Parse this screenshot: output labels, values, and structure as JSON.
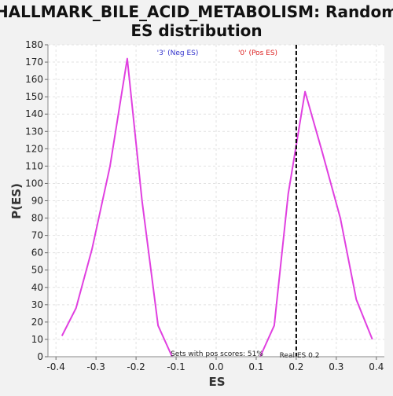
{
  "chart_data": {
    "type": "line",
    "title_line1": "HALLMARK_BILE_ACID_METABOLISM: Random",
    "title_line2": "ES distribution",
    "xlabel": "ES",
    "ylabel": "P(ES)",
    "xlim": [
      -0.42,
      0.42
    ],
    "ylim": [
      0,
      180
    ],
    "x_ticks": [
      -0.4,
      -0.3,
      -0.2,
      -0.1,
      0.0,
      0.1,
      0.2,
      0.3,
      0.4
    ],
    "x_tick_labels": [
      "-0.4",
      "-0.3",
      "-0.2",
      "-0.1",
      "0.0",
      "0.1",
      "0.2",
      "0.3",
      "0.4"
    ],
    "y_ticks": [
      0,
      10,
      20,
      30,
      40,
      50,
      60,
      70,
      80,
      90,
      100,
      110,
      120,
      130,
      140,
      150,
      160,
      170,
      180
    ],
    "y_tick_labels": [
      "0",
      "10",
      "20",
      "30",
      "40",
      "50",
      "60",
      "70",
      "80",
      "90",
      "100",
      "110",
      "120",
      "130",
      "140",
      "150",
      "160",
      "170",
      "180"
    ],
    "grid": true,
    "legend": [
      {
        "label": "'3' (Neg ES)",
        "color": "#3333cc"
      },
      {
        "label": "'0' (Pos ES)",
        "color": "#dd2222"
      }
    ],
    "series": [
      {
        "color": "#e040e0",
        "x": [
          -0.385,
          -0.35,
          -0.31,
          -0.265,
          -0.222,
          -0.185,
          -0.145,
          -0.11
        ],
        "y": [
          12,
          28,
          62,
          110,
          172,
          90,
          18,
          0
        ]
      },
      {
        "color": "#e040e0",
        "x": [
          0.11,
          0.145,
          0.18,
          0.222,
          0.265,
          0.31,
          0.35,
          0.39
        ],
        "y": [
          0,
          18,
          94,
          153,
          118,
          80,
          33,
          10
        ]
      }
    ],
    "real_es": {
      "x": 0.2,
      "label": "Real ES 0.2"
    },
    "note": "Sets with pos scores: 51%"
  },
  "colors": {
    "background": "#f2f2f2",
    "plot_background": "#ffffff",
    "grid": "#e2e2e2",
    "line": "#e040e0",
    "real_es_line": "#000000"
  }
}
